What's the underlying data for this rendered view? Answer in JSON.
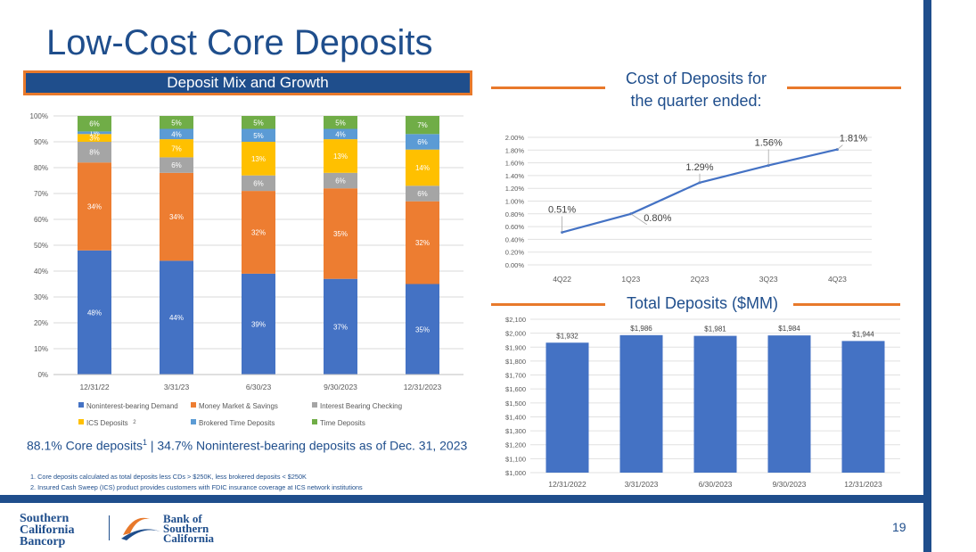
{
  "slide": {
    "title": "Low-Cost Core Deposits",
    "banner": "Deposit Mix and Growth",
    "cost_title_line1": "Cost of Deposits for",
    "cost_title_line2": "the quarter ended:",
    "total_title": "Total Deposits ($MM)",
    "summary_part1": "88.1% Core deposits",
    "summary_sup": "1",
    "summary_part2": " | 34.7% Noninterest-bearing deposits as of Dec. 31, 2023",
    "footnote1": "1.  Core deposits calculated as total deposits less CDs > $250K, less brokered deposits < $250K",
    "footnote2": "2.  Insured Cash Sweep (ICS) product provides customers with FDIC insurance coverage at ICS network institutions",
    "page_number": "19",
    "logo1": {
      "line1": "Southern",
      "line2": "California",
      "line3": "Bancorp"
    },
    "logo2": {
      "line1": "Bank of",
      "line2": "Southern",
      "line3": "California"
    }
  },
  "colors": {
    "primary": "#1f4e8c",
    "accent": "#e8792b",
    "bar": "#4472c4"
  },
  "chart_data": [
    {
      "type": "bar",
      "stacked": true,
      "title": "Deposit Mix and Growth",
      "categories": [
        "12/31/22",
        "3/31/23",
        "6/30/23",
        "9/30/2023",
        "12/31/2023"
      ],
      "ylim": [
        0,
        100
      ],
      "yticks": [
        "0%",
        "10%",
        "20%",
        "30%",
        "40%",
        "50%",
        "60%",
        "70%",
        "80%",
        "90%",
        "100%"
      ],
      "series": [
        {
          "name": "Noninterest-bearing Demand",
          "color": "#4472c4",
          "values": [
            48,
            44,
            39,
            37,
            35
          ],
          "labels": [
            "48%",
            "44%",
            "39%",
            "37%",
            "35%"
          ]
        },
        {
          "name": "Money Market & Savings",
          "color": "#ed7d31",
          "values": [
            34,
            34,
            32,
            35,
            32
          ],
          "labels": [
            "34%",
            "34%",
            "32%",
            "35%",
            "32%"
          ]
        },
        {
          "name": "Interest Bearing Checking",
          "color": "#a5a5a5",
          "values": [
            8,
            6,
            6,
            6,
            6
          ],
          "labels": [
            "8%",
            "6%",
            "6%",
            "6%",
            "6%"
          ]
        },
        {
          "name": "ICS Deposits",
          "legend_sup": "2",
          "color": "#ffc000",
          "values": [
            3,
            7,
            13,
            13,
            14
          ],
          "labels": [
            "3%",
            "7%",
            "13%",
            "13%",
            "14%"
          ]
        },
        {
          "name": "Brokered Time Deposits",
          "color": "#5b9bd5",
          "values": [
            1,
            4,
            5,
            4,
            6
          ],
          "labels": [
            "1%",
            "4%",
            "5%",
            "4%",
            "6%"
          ]
        },
        {
          "name": "Time Deposits",
          "color": "#70ad47",
          "values": [
            6,
            5,
            5,
            5,
            7
          ],
          "labels": [
            "6%",
            "5%",
            "5%",
            "5%",
            "7%"
          ]
        }
      ],
      "legend": "bottom"
    },
    {
      "type": "line",
      "title": "Cost of Deposits for the quarter ended:",
      "categories": [
        "4Q22",
        "1Q23",
        "2Q23",
        "3Q23",
        "4Q23"
      ],
      "values": [
        0.51,
        0.8,
        1.29,
        1.56,
        1.81
      ],
      "labels": [
        "0.51%",
        "0.80%",
        "1.29%",
        "1.56%",
        "1.81%"
      ],
      "ylim": [
        0,
        2.0
      ],
      "yticks": [
        "0.00%",
        "0.20%",
        "0.40%",
        "0.60%",
        "0.80%",
        "1.00%",
        "1.20%",
        "1.40%",
        "1.60%",
        "1.80%",
        "2.00%"
      ],
      "color": "#4472c4"
    },
    {
      "type": "bar",
      "title": "Total Deposits ($MM)",
      "categories": [
        "12/31/2022",
        "3/31/2023",
        "6/30/2023",
        "9/30/2023",
        "12/31/2023"
      ],
      "values": [
        1932,
        1986,
        1981,
        1984,
        1944
      ],
      "labels": [
        "$1,932",
        "$1,986",
        "$1,981",
        "$1,984",
        "$1,944"
      ],
      "ylim": [
        1000,
        2100
      ],
      "yticks": [
        "$1,000",
        "$1,100",
        "$1,200",
        "$1,300",
        "$1,400",
        "$1,500",
        "$1,600",
        "$1,700",
        "$1,800",
        "$1,900",
        "$2,000",
        "$2,100"
      ],
      "color": "#4472c4"
    }
  ]
}
